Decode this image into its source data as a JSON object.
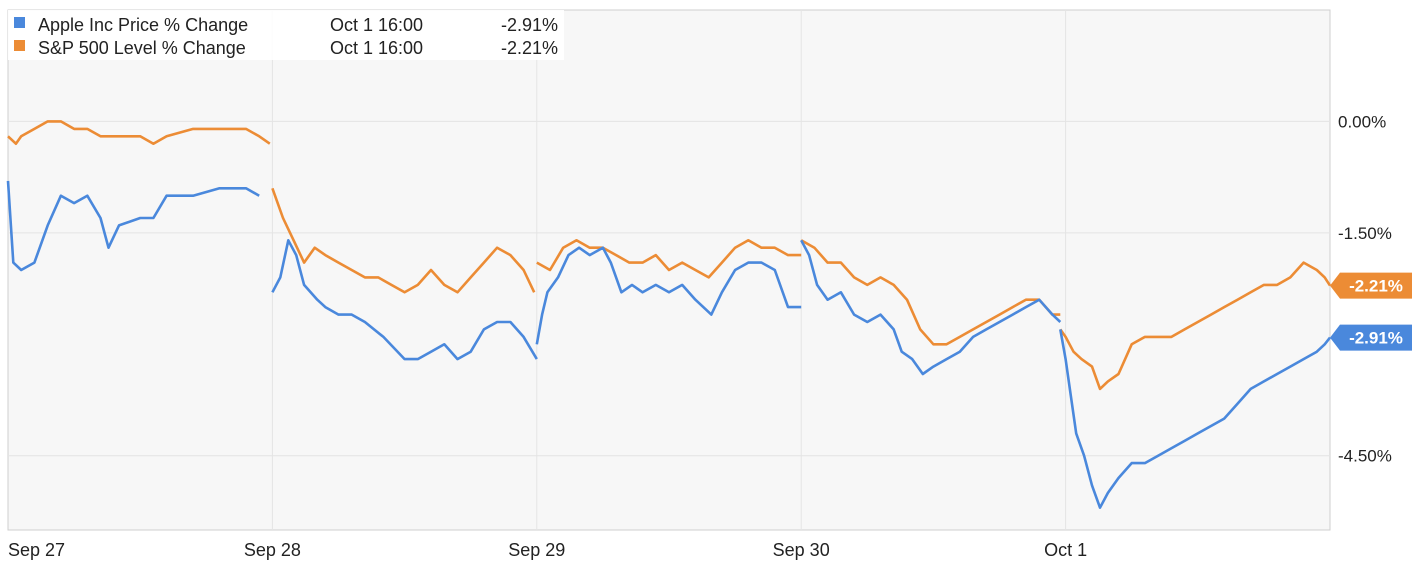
{
  "legend": [
    {
      "name": "Apple Inc Price % Change",
      "time": "Oct 1 16:00",
      "value": "-2.91%",
      "color": "#4a88dc"
    },
    {
      "name": "S&P 500 Level % Change",
      "time": "Oct 1 16:00",
      "value": "-2.21%",
      "color": "#ec8c35"
    }
  ],
  "chart_data": {
    "type": "line",
    "title": "",
    "xlabel": "",
    "ylabel": "",
    "x_ticks": [
      "Sep 27",
      "Sep 28",
      "Sep 29",
      "Sep 30",
      "Oct 1"
    ],
    "y_ticks": [
      {
        "value": 0.0,
        "label": "0.00%"
      },
      {
        "value": -1.5,
        "label": "-1.50%"
      },
      {
        "value": -4.5,
        "label": "-4.50%"
      }
    ],
    "ylim": [
      -5.5,
      1.5
    ],
    "xlim": [
      0,
      5
    ],
    "grid": true,
    "legend_position": "top-left",
    "series": [
      {
        "name": "Apple Inc Price % Change",
        "color": "#4a88dc",
        "last_label": "-2.91%",
        "segments": [
          [
            [
              0.0,
              -0.8
            ],
            [
              0.02,
              -1.9
            ],
            [
              0.05,
              -2.0
            ],
            [
              0.1,
              -1.9
            ],
            [
              0.15,
              -1.4
            ],
            [
              0.2,
              -1.0
            ],
            [
              0.25,
              -1.1
            ],
            [
              0.3,
              -1.0
            ],
            [
              0.35,
              -1.3
            ],
            [
              0.38,
              -1.7
            ],
            [
              0.42,
              -1.4
            ],
            [
              0.5,
              -1.3
            ],
            [
              0.55,
              -1.3
            ],
            [
              0.6,
              -1.0
            ],
            [
              0.7,
              -1.0
            ],
            [
              0.8,
              -0.9
            ],
            [
              0.9,
              -0.9
            ],
            [
              0.95,
              -1.0
            ]
          ],
          [
            [
              1.0,
              -2.3
            ],
            [
              1.03,
              -2.1
            ],
            [
              1.06,
              -1.6
            ],
            [
              1.09,
              -1.8
            ],
            [
              1.12,
              -2.2
            ],
            [
              1.17,
              -2.4
            ],
            [
              1.2,
              -2.5
            ],
            [
              1.25,
              -2.6
            ],
            [
              1.3,
              -2.6
            ],
            [
              1.35,
              -2.7
            ],
            [
              1.42,
              -2.9
            ],
            [
              1.5,
              -3.2
            ],
            [
              1.55,
              -3.2
            ],
            [
              1.6,
              -3.1
            ],
            [
              1.65,
              -3.0
            ],
            [
              1.7,
              -3.2
            ],
            [
              1.75,
              -3.1
            ],
            [
              1.8,
              -2.8
            ],
            [
              1.85,
              -2.7
            ],
            [
              1.9,
              -2.7
            ],
            [
              1.95,
              -2.9
            ],
            [
              2.0,
              -3.2
            ]
          ],
          [
            [
              2.0,
              -3.0
            ],
            [
              2.02,
              -2.6
            ],
            [
              2.04,
              -2.3
            ],
            [
              2.08,
              -2.1
            ],
            [
              2.12,
              -1.8
            ],
            [
              2.16,
              -1.7
            ],
            [
              2.2,
              -1.8
            ],
            [
              2.25,
              -1.7
            ],
            [
              2.28,
              -1.9
            ],
            [
              2.32,
              -2.3
            ],
            [
              2.36,
              -2.2
            ],
            [
              2.4,
              -2.3
            ],
            [
              2.45,
              -2.2
            ],
            [
              2.5,
              -2.3
            ],
            [
              2.55,
              -2.2
            ],
            [
              2.6,
              -2.4
            ],
            [
              2.66,
              -2.6
            ],
            [
              2.7,
              -2.3
            ],
            [
              2.75,
              -2.0
            ],
            [
              2.8,
              -1.9
            ],
            [
              2.85,
              -1.9
            ],
            [
              2.9,
              -2.0
            ],
            [
              2.95,
              -2.5
            ],
            [
              3.0,
              -2.5
            ]
          ],
          [
            [
              3.0,
              -1.6
            ],
            [
              3.03,
              -1.8
            ],
            [
              3.06,
              -2.2
            ],
            [
              3.1,
              -2.4
            ],
            [
              3.15,
              -2.3
            ],
            [
              3.2,
              -2.6
            ],
            [
              3.25,
              -2.7
            ],
            [
              3.3,
              -2.6
            ],
            [
              3.35,
              -2.8
            ],
            [
              3.38,
              -3.1
            ],
            [
              3.42,
              -3.2
            ],
            [
              3.46,
              -3.4
            ],
            [
              3.5,
              -3.3
            ],
            [
              3.55,
              -3.2
            ],
            [
              3.6,
              -3.1
            ],
            [
              3.65,
              -2.9
            ],
            [
              3.7,
              -2.8
            ],
            [
              3.75,
              -2.7
            ],
            [
              3.8,
              -2.6
            ],
            [
              3.85,
              -2.5
            ],
            [
              3.9,
              -2.4
            ],
            [
              3.95,
              -2.6
            ],
            [
              3.98,
              -2.7
            ]
          ],
          [
            [
              3.98,
              -2.8
            ],
            [
              4.0,
              -3.2
            ],
            [
              4.02,
              -3.7
            ],
            [
              4.04,
              -4.2
            ],
            [
              4.07,
              -4.5
            ],
            [
              4.1,
              -4.9
            ],
            [
              4.13,
              -5.2
            ],
            [
              4.16,
              -5.0
            ],
            [
              4.2,
              -4.8
            ],
            [
              4.25,
              -4.6
            ],
            [
              4.3,
              -4.6
            ],
            [
              4.35,
              -4.5
            ],
            [
              4.4,
              -4.4
            ],
            [
              4.45,
              -4.3
            ],
            [
              4.5,
              -4.2
            ],
            [
              4.55,
              -4.1
            ],
            [
              4.6,
              -4.0
            ],
            [
              4.65,
              -3.8
            ],
            [
              4.7,
              -3.6
            ],
            [
              4.75,
              -3.5
            ],
            [
              4.8,
              -3.4
            ],
            [
              4.85,
              -3.3
            ],
            [
              4.9,
              -3.2
            ],
            [
              4.95,
              -3.1
            ],
            [
              4.98,
              -3.0
            ],
            [
              5.0,
              -2.91
            ]
          ]
        ]
      },
      {
        "name": "S&P 500 Level % Change",
        "color": "#ec8c35",
        "last_label": "-2.21%",
        "segments": [
          [
            [
              0.0,
              -0.2
            ],
            [
              0.03,
              -0.3
            ],
            [
              0.05,
              -0.2
            ],
            [
              0.1,
              -0.1
            ],
            [
              0.15,
              0.0
            ],
            [
              0.2,
              0.0
            ],
            [
              0.25,
              -0.1
            ],
            [
              0.3,
              -0.1
            ],
            [
              0.35,
              -0.2
            ],
            [
              0.4,
              -0.2
            ],
            [
              0.45,
              -0.2
            ],
            [
              0.5,
              -0.2
            ],
            [
              0.55,
              -0.3
            ],
            [
              0.6,
              -0.2
            ],
            [
              0.7,
              -0.1
            ],
            [
              0.8,
              -0.1
            ],
            [
              0.9,
              -0.1
            ],
            [
              0.95,
              -0.2
            ],
            [
              0.99,
              -0.3
            ]
          ],
          [
            [
              1.0,
              -0.9
            ],
            [
              1.04,
              -1.3
            ],
            [
              1.08,
              -1.6
            ],
            [
              1.12,
              -1.9
            ],
            [
              1.16,
              -1.7
            ],
            [
              1.2,
              -1.8
            ],
            [
              1.25,
              -1.9
            ],
            [
              1.3,
              -2.0
            ],
            [
              1.35,
              -2.1
            ],
            [
              1.4,
              -2.1
            ],
            [
              1.45,
              -2.2
            ],
            [
              1.5,
              -2.3
            ],
            [
              1.55,
              -2.2
            ],
            [
              1.6,
              -2.0
            ],
            [
              1.65,
              -2.2
            ],
            [
              1.7,
              -2.3
            ],
            [
              1.75,
              -2.1
            ],
            [
              1.8,
              -1.9
            ],
            [
              1.85,
              -1.7
            ],
            [
              1.9,
              -1.8
            ],
            [
              1.95,
              -2.0
            ],
            [
              1.99,
              -2.3
            ]
          ],
          [
            [
              2.0,
              -1.9
            ],
            [
              2.05,
              -2.0
            ],
            [
              2.1,
              -1.7
            ],
            [
              2.15,
              -1.6
            ],
            [
              2.2,
              -1.7
            ],
            [
              2.25,
              -1.7
            ],
            [
              2.3,
              -1.8
            ],
            [
              2.35,
              -1.9
            ],
            [
              2.4,
              -1.9
            ],
            [
              2.45,
              -1.8
            ],
            [
              2.5,
              -2.0
            ],
            [
              2.55,
              -1.9
            ],
            [
              2.6,
              -2.0
            ],
            [
              2.65,
              -2.1
            ],
            [
              2.7,
              -1.9
            ],
            [
              2.75,
              -1.7
            ],
            [
              2.8,
              -1.6
            ],
            [
              2.85,
              -1.7
            ],
            [
              2.9,
              -1.7
            ],
            [
              2.95,
              -1.8
            ],
            [
              3.0,
              -1.8
            ]
          ],
          [
            [
              3.0,
              -1.6
            ],
            [
              3.05,
              -1.7
            ],
            [
              3.1,
              -1.9
            ],
            [
              3.15,
              -1.9
            ],
            [
              3.2,
              -2.1
            ],
            [
              3.25,
              -2.2
            ],
            [
              3.3,
              -2.1
            ],
            [
              3.35,
              -2.2
            ],
            [
              3.4,
              -2.4
            ],
            [
              3.45,
              -2.8
            ],
            [
              3.5,
              -3.0
            ],
            [
              3.55,
              -3.0
            ],
            [
              3.6,
              -2.9
            ],
            [
              3.65,
              -2.8
            ],
            [
              3.7,
              -2.7
            ],
            [
              3.75,
              -2.6
            ],
            [
              3.8,
              -2.5
            ],
            [
              3.85,
              -2.4
            ],
            [
              3.9,
              -2.4
            ],
            [
              3.95,
              -2.6
            ],
            [
              3.98,
              -2.6
            ]
          ],
          [
            [
              3.98,
              -2.8
            ],
            [
              4.0,
              -2.9
            ],
            [
              4.03,
              -3.1
            ],
            [
              4.06,
              -3.2
            ],
            [
              4.1,
              -3.3
            ],
            [
              4.13,
              -3.6
            ],
            [
              4.16,
              -3.5
            ],
            [
              4.2,
              -3.4
            ],
            [
              4.25,
              -3.0
            ],
            [
              4.3,
              -2.9
            ],
            [
              4.35,
              -2.9
            ],
            [
              4.4,
              -2.9
            ],
            [
              4.45,
              -2.8
            ],
            [
              4.5,
              -2.7
            ],
            [
              4.55,
              -2.6
            ],
            [
              4.6,
              -2.5
            ],
            [
              4.65,
              -2.4
            ],
            [
              4.7,
              -2.3
            ],
            [
              4.75,
              -2.2
            ],
            [
              4.8,
              -2.2
            ],
            [
              4.85,
              -2.1
            ],
            [
              4.9,
              -1.9
            ],
            [
              4.95,
              -2.0
            ],
            [
              4.98,
              -2.1
            ],
            [
              5.0,
              -2.21
            ]
          ]
        ]
      }
    ]
  }
}
